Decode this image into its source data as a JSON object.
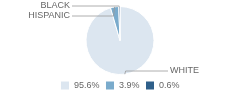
{
  "chart_data": {
    "type": "pie",
    "categories": [
      "95.6%",
      "3.9%",
      "0.6%"
    ],
    "values": [
      95.6,
      3.9,
      0.6
    ],
    "colors": [
      "#dce6f0",
      "#7aabcc",
      "#2e5f8a"
    ],
    "annotations": [
      "WHITE",
      "HISPANIC",
      "BLACK"
    ],
    "legend": "bottom"
  }
}
